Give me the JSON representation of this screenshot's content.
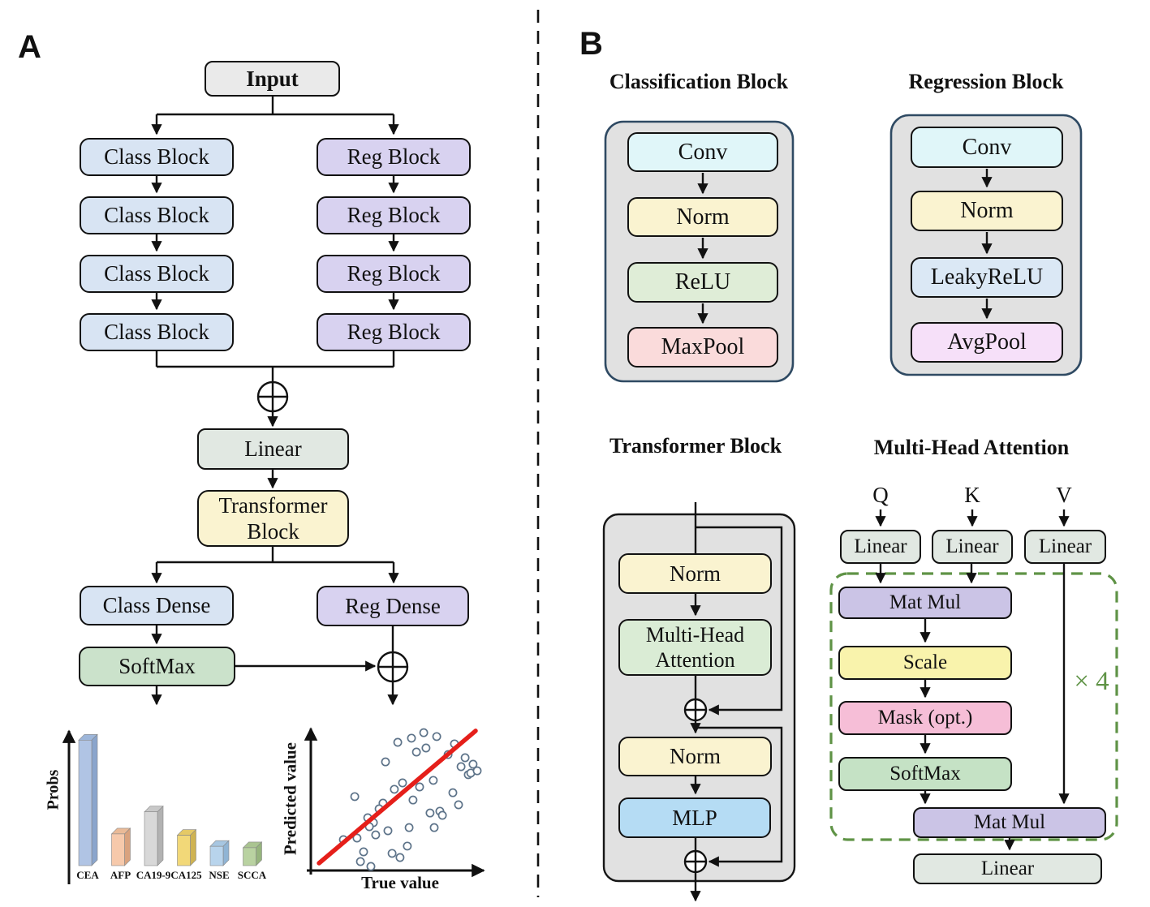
{
  "colors": {
    "class_block_fill": "#d8e4f3",
    "reg_block_fill": "#d8d2f0",
    "input_fill": "#eaeaea",
    "linear_fill": "#e1e8e2",
    "norm_yellow_fill": "#faf3d0",
    "softmax_green_fill": "#cbe2cb",
    "conv_fill": "#e0f6f9",
    "relu_fill": "#dfedd7",
    "maxpool_fill": "#fadbdb",
    "leakyrelu_fill": "#dbe8f5",
    "avgpool_fill": "#f6e0f9",
    "mlp_fill": "#b5dcf4",
    "matmul_fill": "#cbc4e6",
    "scale_fill": "#f9f3ac",
    "mask_fill": "#f6bed7",
    "container_fill": "#e1e1e1",
    "container_border": "#2f4a63",
    "dashed_repeat_green": "#5f9346",
    "regression_line_red": "#e51f1a",
    "scatter_stroke": "#5d7389"
  },
  "panel_a": {
    "label": "A",
    "input_label": "Input",
    "class_blocks": [
      "Class Block",
      "Class Block",
      "Class Block",
      "Class Block"
    ],
    "reg_blocks": [
      "Reg Block",
      "Reg Block",
      "Reg Block",
      "Reg Block"
    ],
    "linear_label": "Linear",
    "transformer_label": "Transformer Block",
    "class_dense_label": "Class Dense",
    "reg_dense_label": "Reg Dense",
    "softmax_label": "SoftMax"
  },
  "panel_b": {
    "label": "B",
    "classification": {
      "title": "Classification Block",
      "layers": [
        "Conv",
        "Norm",
        "ReLU",
        "MaxPool"
      ]
    },
    "regression": {
      "title": "Regression Block",
      "layers": [
        "Conv",
        "Norm",
        "LeakyReLU",
        "AvgPool"
      ]
    },
    "transformer": {
      "title": "Transformer Block",
      "norm1": "Norm",
      "mha": "Multi-Head Attention",
      "norm2": "Norm",
      "mlp": "MLP"
    },
    "mha": {
      "title": "Multi-Head Attention",
      "q": "Q",
      "k": "K",
      "v": "V",
      "linear_q": "Linear",
      "linear_k": "Linear",
      "linear_v": "Linear",
      "matmul1": "Mat Mul",
      "scale": "Scale",
      "mask": "Mask (opt.)",
      "softmax": "SoftMax",
      "matmul2": "Mat Mul",
      "repeat_label": "× 4",
      "linear_out": "Linear"
    }
  },
  "chart_data": [
    {
      "type": "bar",
      "title": "",
      "xlabel": "",
      "ylabel": "Probs",
      "categories": [
        "CEA",
        "AFP",
        "CA19-9",
        "CA125",
        "NSE",
        "SCCA"
      ],
      "values": [
        0.91,
        0.23,
        0.39,
        0.22,
        0.14,
        0.13
      ],
      "ylim": [
        0,
        1
      ],
      "style": "3d",
      "grid": false,
      "bar_colors": [
        {
          "front": "#b0c4e4",
          "side": "#8aa5cc",
          "top": "#9db6da"
        },
        {
          "front": "#f6c9ab",
          "side": "#d9a27e",
          "top": "#eaba97"
        },
        {
          "front": "#d8d8d8",
          "side": "#b2b2b2",
          "top": "#c8c8c8"
        },
        {
          "front": "#f2d878",
          "side": "#cfb352",
          "top": "#e5c966"
        },
        {
          "front": "#b8d4ec",
          "side": "#90b4d4",
          "top": "#a7c6e1"
        },
        {
          "front": "#b9d2a1",
          "side": "#96b47d",
          "top": "#aac491"
        }
      ]
    },
    {
      "type": "scatter",
      "title": "",
      "xlabel": "True value",
      "ylabel": "Predicted value",
      "xlim": [
        0,
        100
      ],
      "ylim": [
        0,
        100
      ],
      "grid": false,
      "points": [
        [
          48.9,
          87.8
        ],
        [
          56.6,
          90.6
        ],
        [
          63.5,
          94.4
        ],
        [
          70.8,
          91.7
        ],
        [
          59.4,
          81.1
        ],
        [
          64.8,
          83.9
        ],
        [
          42.0,
          74.4
        ],
        [
          77.2,
          79.4
        ],
        [
          80.8,
          86.7
        ],
        [
          86.8,
          77.2
        ],
        [
          84.5,
          71.1
        ],
        [
          88.6,
          65.6
        ],
        [
          90.0,
          66.7
        ],
        [
          91.3,
          72.8
        ],
        [
          93.6,
          68.3
        ],
        [
          24.7,
          50.6
        ],
        [
          47.0,
          55.6
        ],
        [
          51.6,
          60.0
        ],
        [
          61.2,
          57.2
        ],
        [
          68.9,
          61.7
        ],
        [
          79.9,
          53.3
        ],
        [
          83.1,
          45.0
        ],
        [
          57.5,
          48.3
        ],
        [
          40.6,
          46.1
        ],
        [
          38.4,
          42.2
        ],
        [
          32.0,
          36.1
        ],
        [
          35.2,
          32.8
        ],
        [
          32.9,
          30.0
        ],
        [
          67.1,
          39.4
        ],
        [
          72.6,
          40.6
        ],
        [
          74.0,
          37.8
        ],
        [
          55.3,
          29.4
        ],
        [
          69.4,
          29.4
        ],
        [
          43.4,
          27.2
        ],
        [
          36.5,
          24.4
        ],
        [
          26.0,
          22.2
        ],
        [
          18.3,
          21.1
        ],
        [
          29.7,
          12.8
        ],
        [
          45.7,
          11.7
        ],
        [
          50.2,
          8.9
        ],
        [
          54.3,
          16.7
        ],
        [
          27.9,
          6.1
        ],
        [
          33.8,
          2.8
        ]
      ],
      "regression_line": {
        "x1": 4.6,
        "y1": 5.0,
        "x2": 92.7,
        "y2": 95.6,
        "color": "#e51f1a"
      }
    }
  ]
}
